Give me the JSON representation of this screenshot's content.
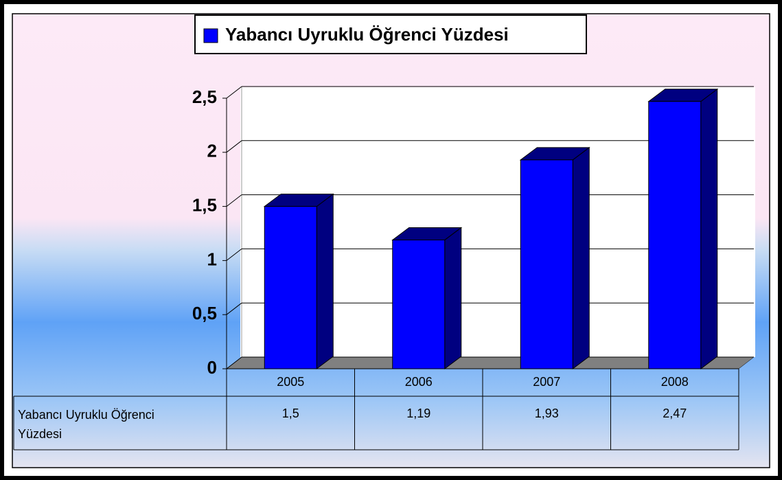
{
  "chart_data": {
    "type": "bar",
    "categories": [
      "2005",
      "2006",
      "2007",
      "2008"
    ],
    "series": [
      {
        "name": "Yabancı Uyruklu Öğrenci Yüzdesi",
        "color": "#0000ff",
        "side_color": "#000080",
        "values": [
          1.5,
          1.19,
          1.93,
          2.47
        ],
        "value_labels": [
          "1,5",
          "1,19",
          "1,93",
          "2,47"
        ]
      }
    ],
    "ylim": [
      0,
      2.5
    ],
    "yticks": [
      0,
      {
        "value": 0.5,
        "label": "0,5"
      },
      1,
      {
        "value": 1.5,
        "label": "1,5"
      },
      2,
      {
        "value": 2.5,
        "label": "2,5"
      }
    ],
    "grid": true
  }
}
